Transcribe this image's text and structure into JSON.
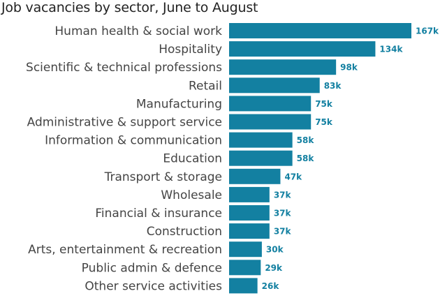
{
  "chart_data": {
    "type": "bar",
    "orientation": "horizontal",
    "title": "Job vacancies by sector, June to August",
    "xlabel": "",
    "ylabel": "",
    "xlim": [
      0,
      167
    ],
    "grid": false,
    "bar_color": "#1380A1",
    "label_color": "#1380A1",
    "categories": [
      "Human health & social work",
      "Hospitality",
      "Scientific & technical professions",
      "Retail",
      "Manufacturing",
      "Administrative & support service",
      "Information & communication",
      "Education",
      "Transport & storage",
      "Wholesale",
      "Financial & insurance",
      "Construction",
      "Arts, entertainment & recreation",
      "Public admin & defence",
      "Other service activities"
    ],
    "values": [
      167,
      134,
      98,
      83,
      75,
      75,
      58,
      58,
      47,
      37,
      37,
      37,
      30,
      29,
      26
    ],
    "value_labels": [
      "167k",
      "134k",
      "98k",
      "83k",
      "75k",
      "75k",
      "58k",
      "58k",
      "47k",
      "37k",
      "37k",
      "37k",
      "30k",
      "29k",
      "26k"
    ]
  }
}
